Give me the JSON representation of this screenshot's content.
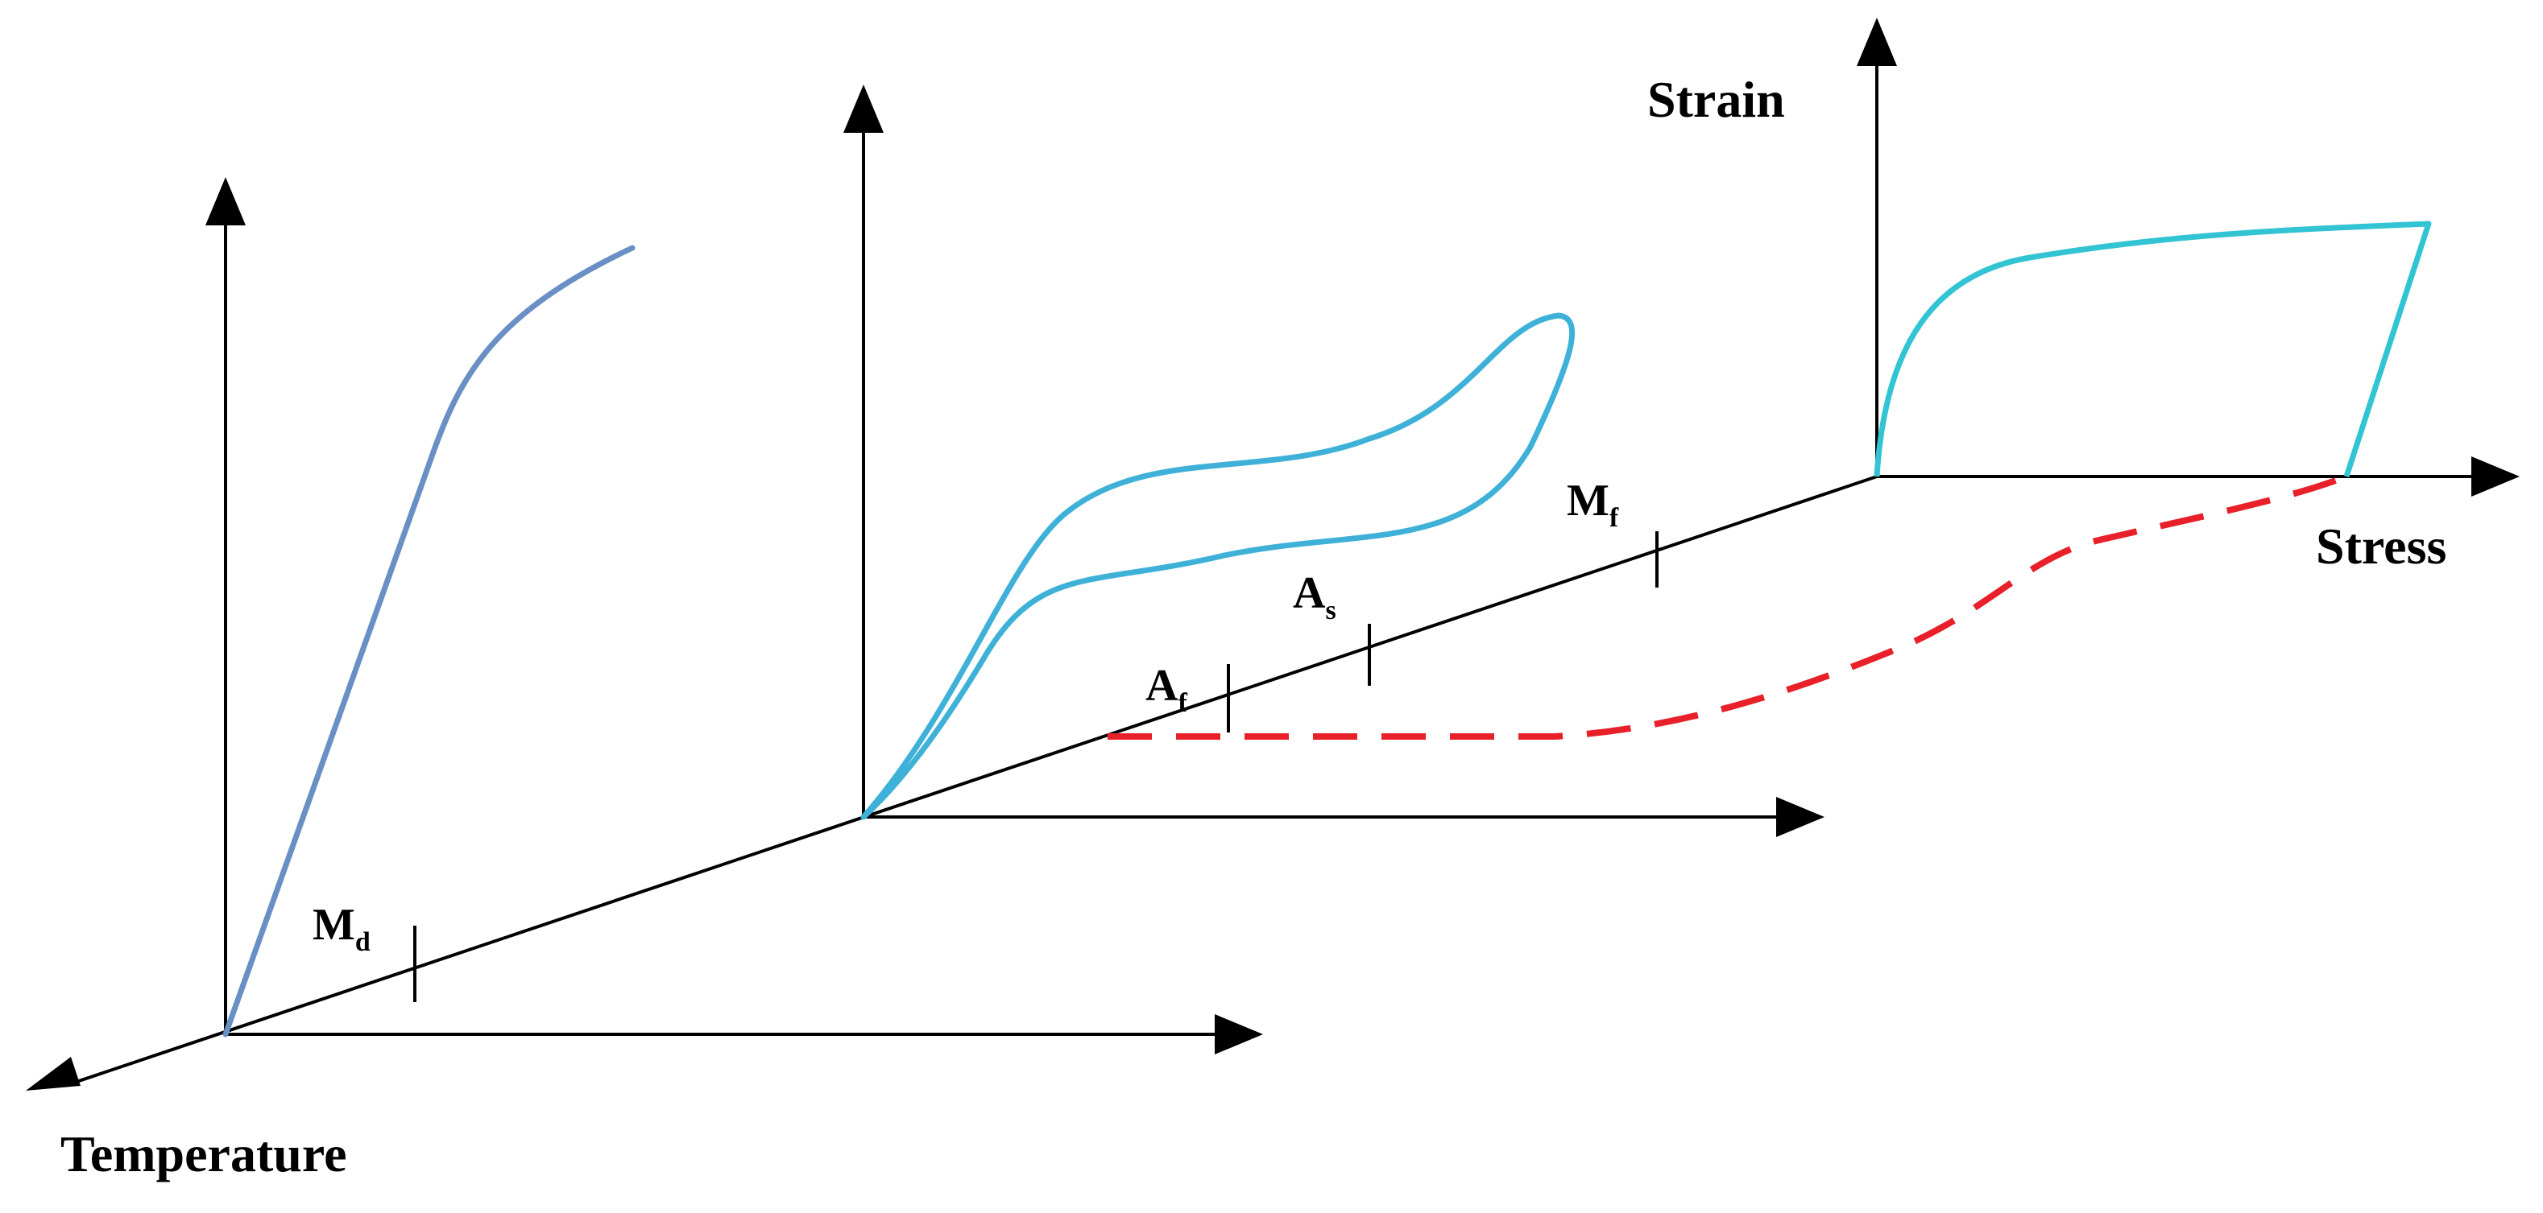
{
  "labels": {
    "temperature": "Temperature",
    "strain": "Strain",
    "stress": "Stress"
  },
  "ticks": [
    {
      "main": "M",
      "sub": "d"
    },
    {
      "main": "A",
      "sub": "f"
    },
    {
      "main": "A",
      "sub": "s"
    },
    {
      "main": "M",
      "sub": "f"
    }
  ],
  "colors": {
    "axes": "#000000",
    "curve_left": "#6a8fc4",
    "curve_middle": "#3fb1d8",
    "curve_right": "#33c4d4",
    "dashed": "#e8202a"
  }
}
